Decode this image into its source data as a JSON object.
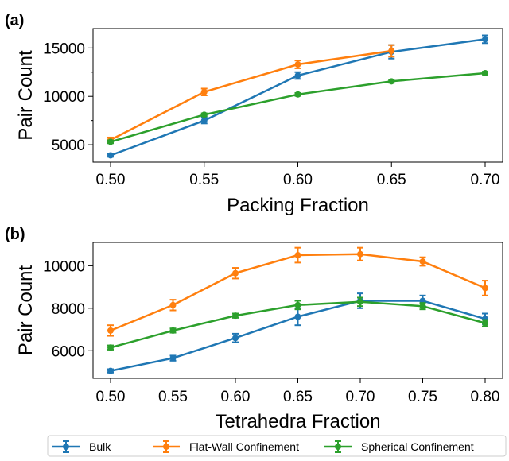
{
  "colors": {
    "bulk": "#1f77b4",
    "flat": "#ff7f0e",
    "spherical": "#2ca02c"
  },
  "legend": {
    "placement": "bottom",
    "entries": [
      "Bulk",
      "Flat-Wall Confinement",
      "Spherical Confinement"
    ]
  },
  "chart_data": [
    {
      "panel_label": "(a)",
      "type": "line",
      "title": "",
      "xlabel": "Packing Fraction",
      "ylabel": "Pair Count",
      "x": [
        0.5,
        0.55,
        0.6,
        0.65,
        0.7
      ],
      "xticks": [
        "0.50",
        "0.55",
        "0.60",
        "0.65",
        "0.70"
      ],
      "yticks": [
        5000,
        10000,
        15000
      ],
      "ylim": [
        3200,
        17000
      ],
      "grid": false,
      "error_bars": true,
      "series": [
        {
          "name": "Bulk",
          "values": [
            3900,
            7500,
            12150,
            14600,
            15900
          ],
          "err": [
            150,
            300,
            350,
            700,
            400
          ]
        },
        {
          "name": "Flat-Wall Confinement",
          "values": [
            5500,
            10450,
            13300,
            14700,
            null
          ],
          "err": [
            250,
            350,
            400,
            600,
            null
          ]
        },
        {
          "name": "Spherical Confinement",
          "values": [
            5300,
            8100,
            10200,
            11550,
            12400
          ],
          "err": [
            150,
            150,
            150,
            150,
            150
          ]
        }
      ]
    },
    {
      "panel_label": "(b)",
      "type": "line",
      "title": "",
      "xlabel": "Tetrahedra Fraction",
      "ylabel": "Pair Count",
      "x": [
        0.5,
        0.55,
        0.6,
        0.65,
        0.7,
        0.75,
        0.8
      ],
      "xticks": [
        "0.50",
        "0.55",
        "0.60",
        "0.65",
        "0.70",
        "0.75",
        "0.80"
      ],
      "yticks": [
        6000,
        8000,
        10000
      ],
      "ylim": [
        4700,
        11100
      ],
      "grid": false,
      "error_bars": true,
      "series": [
        {
          "name": "Bulk",
          "values": [
            5050,
            5650,
            6600,
            7600,
            8350,
            8350,
            7500
          ],
          "err": [
            80,
            120,
            200,
            400,
            350,
            250,
            250
          ]
        },
        {
          "name": "Flat-Wall Confinement",
          "values": [
            6950,
            8150,
            9650,
            10500,
            10550,
            10200,
            8950
          ],
          "err": [
            250,
            250,
            250,
            350,
            300,
            200,
            350
          ]
        },
        {
          "name": "Spherical Confinement",
          "values": [
            6150,
            6950,
            7650,
            8150,
            8300,
            8100,
            7300
          ],
          "err": [
            100,
            100,
            100,
            200,
            200,
            150,
            150
          ]
        }
      ]
    }
  ]
}
